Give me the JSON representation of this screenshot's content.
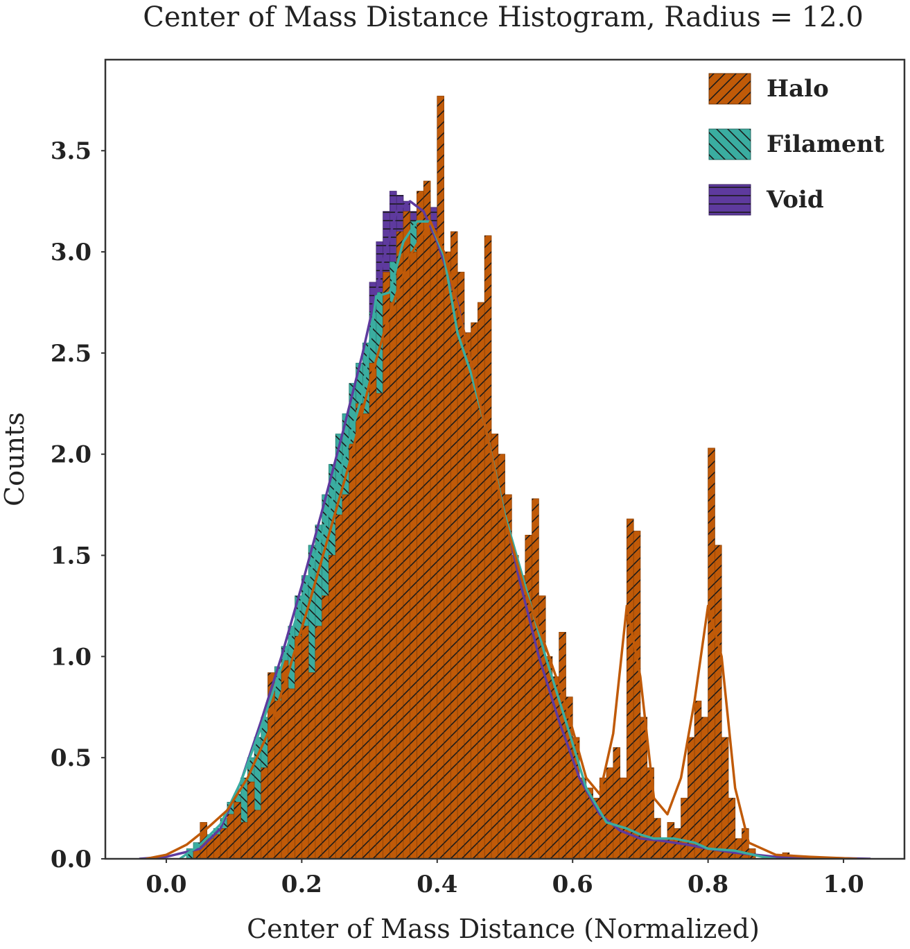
{
  "chart_data": {
    "type": "bar",
    "subtype": "histogram-with-kde",
    "title": "Center of Mass Distance Histogram, Radius = 12.0",
    "xlabel": "Center of Mass Distance (Normalized)",
    "ylabel": "Counts",
    "xlim": [
      -0.09,
      1.09
    ],
    "ylim": [
      0,
      3.95
    ],
    "xticks": [
      "0.0",
      "0.2",
      "0.4",
      "0.6",
      "0.8",
      "1.0"
    ],
    "yticks": [
      "0.0",
      "0.5",
      "1.0",
      "1.5",
      "2.0",
      "2.5",
      "3.0",
      "3.5"
    ],
    "bin_width": 0.01,
    "grid": false,
    "legend_position": "top-right",
    "series": [
      {
        "name": "Halo",
        "color": "#c05a08",
        "hatch": "diagonal-forward",
        "bins": [
          [
            0.04,
            0.05
          ],
          [
            0.05,
            0.18
          ],
          [
            0.06,
            0.1
          ],
          [
            0.07,
            0.12
          ],
          [
            0.08,
            0.15
          ],
          [
            0.09,
            0.22
          ],
          [
            0.1,
            0.28
          ],
          [
            0.11,
            0.18
          ],
          [
            0.12,
            0.38
          ],
          [
            0.13,
            0.24
          ],
          [
            0.14,
            0.45
          ],
          [
            0.15,
            0.92
          ],
          [
            0.16,
            0.78
          ],
          [
            0.17,
            0.98
          ],
          [
            0.18,
            0.84
          ],
          [
            0.19,
            1.1
          ],
          [
            0.2,
            1.15
          ],
          [
            0.21,
            0.92
          ],
          [
            0.22,
            1.15
          ],
          [
            0.23,
            1.3
          ],
          [
            0.24,
            1.5
          ],
          [
            0.25,
            1.7
          ],
          [
            0.26,
            1.8
          ],
          [
            0.27,
            2.05
          ],
          [
            0.28,
            2.25
          ],
          [
            0.29,
            2.2
          ],
          [
            0.3,
            2.45
          ],
          [
            0.31,
            2.3
          ],
          [
            0.32,
            2.9
          ],
          [
            0.33,
            2.75
          ],
          [
            0.34,
            3.1
          ],
          [
            0.35,
            3.2
          ],
          [
            0.36,
            3.0
          ],
          [
            0.37,
            3.3
          ],
          [
            0.38,
            3.35
          ],
          [
            0.39,
            3.1
          ],
          [
            0.4,
            3.77
          ],
          [
            0.41,
            3.0
          ],
          [
            0.42,
            3.1
          ],
          [
            0.43,
            2.9
          ],
          [
            0.44,
            2.6
          ],
          [
            0.45,
            2.65
          ],
          [
            0.46,
            2.75
          ],
          [
            0.47,
            3.08
          ],
          [
            0.48,
            2.1
          ],
          [
            0.49,
            2.0
          ],
          [
            0.5,
            1.8
          ],
          [
            0.51,
            1.5
          ],
          [
            0.52,
            1.4
          ],
          [
            0.53,
            1.6
          ],
          [
            0.54,
            1.78
          ],
          [
            0.55,
            1.3
          ],
          [
            0.56,
            1.0
          ],
          [
            0.57,
            0.9
          ],
          [
            0.58,
            1.12
          ],
          [
            0.59,
            0.8
          ],
          [
            0.6,
            0.6
          ],
          [
            0.61,
            0.4
          ],
          [
            0.62,
            0.35
          ],
          [
            0.63,
            0.3
          ],
          [
            0.64,
            0.4
          ],
          [
            0.65,
            0.45
          ],
          [
            0.66,
            0.55
          ],
          [
            0.67,
            0.4
          ],
          [
            0.68,
            1.68
          ],
          [
            0.69,
            1.62
          ],
          [
            0.7,
            0.7
          ],
          [
            0.71,
            0.45
          ],
          [
            0.72,
            0.2
          ],
          [
            0.73,
            0.1
          ],
          [
            0.74,
            0.18
          ],
          [
            0.75,
            0.15
          ],
          [
            0.76,
            0.3
          ],
          [
            0.77,
            0.6
          ],
          [
            0.78,
            0.78
          ],
          [
            0.79,
            0.7
          ],
          [
            0.8,
            2.03
          ],
          [
            0.81,
            1.55
          ],
          [
            0.82,
            0.6
          ],
          [
            0.83,
            0.3
          ],
          [
            0.84,
            0.1
          ],
          [
            0.85,
            0.15
          ],
          [
            0.86,
            0.05
          ],
          [
            0.91,
            0.03
          ]
        ],
        "kde": [
          [
            -0.03,
            0.0
          ],
          [
            0.0,
            0.02
          ],
          [
            0.03,
            0.07
          ],
          [
            0.06,
            0.15
          ],
          [
            0.09,
            0.24
          ],
          [
            0.12,
            0.4
          ],
          [
            0.15,
            0.62
          ],
          [
            0.18,
            0.92
          ],
          [
            0.21,
            1.25
          ],
          [
            0.24,
            1.6
          ],
          [
            0.27,
            1.95
          ],
          [
            0.3,
            2.35
          ],
          [
            0.33,
            2.7
          ],
          [
            0.36,
            2.98
          ],
          [
            0.39,
            3.15
          ],
          [
            0.41,
            3.0
          ],
          [
            0.44,
            2.6
          ],
          [
            0.47,
            2.15
          ],
          [
            0.5,
            1.68
          ],
          [
            0.53,
            1.32
          ],
          [
            0.56,
            1.05
          ],
          [
            0.59,
            0.76
          ],
          [
            0.62,
            0.4
          ],
          [
            0.64,
            0.32
          ],
          [
            0.66,
            0.62
          ],
          [
            0.68,
            1.25
          ],
          [
            0.7,
            0.9
          ],
          [
            0.72,
            0.3
          ],
          [
            0.74,
            0.22
          ],
          [
            0.76,
            0.4
          ],
          [
            0.78,
            0.78
          ],
          [
            0.8,
            1.25
          ],
          [
            0.82,
            1.0
          ],
          [
            0.84,
            0.35
          ],
          [
            0.86,
            0.08
          ],
          [
            0.9,
            0.02
          ],
          [
            0.95,
            0.01
          ],
          [
            1.02,
            0.0
          ]
        ]
      },
      {
        "name": "Filament",
        "color": "#3aada0",
        "hatch": "diagonal-back",
        "bins": [
          [
            0.03,
            0.05
          ],
          [
            0.04,
            0.08
          ],
          [
            0.05,
            0.1
          ],
          [
            0.06,
            0.12
          ],
          [
            0.07,
            0.15
          ],
          [
            0.08,
            0.2
          ],
          [
            0.09,
            0.28
          ],
          [
            0.1,
            0.32
          ],
          [
            0.11,
            0.4
          ],
          [
            0.12,
            0.5
          ],
          [
            0.13,
            0.6
          ],
          [
            0.14,
            0.7
          ],
          [
            0.15,
            0.85
          ],
          [
            0.16,
            0.95
          ],
          [
            0.17,
            1.05
          ],
          [
            0.18,
            1.15
          ],
          [
            0.19,
            1.3
          ],
          [
            0.2,
            1.4
          ],
          [
            0.21,
            1.55
          ],
          [
            0.22,
            1.65
          ],
          [
            0.23,
            1.8
          ],
          [
            0.24,
            1.95
          ],
          [
            0.25,
            2.1
          ],
          [
            0.26,
            2.2
          ],
          [
            0.27,
            2.35
          ],
          [
            0.28,
            2.45
          ],
          [
            0.29,
            2.55
          ],
          [
            0.3,
            2.7
          ],
          [
            0.31,
            2.8
          ],
          [
            0.32,
            2.85
          ],
          [
            0.33,
            2.95
          ],
          [
            0.34,
            3.05
          ],
          [
            0.35,
            3.1
          ],
          [
            0.36,
            3.15
          ],
          [
            0.37,
            3.1
          ],
          [
            0.38,
            3.15
          ],
          [
            0.39,
            3.1
          ],
          [
            0.4,
            3.0
          ],
          [
            0.41,
            2.9
          ],
          [
            0.42,
            2.85
          ],
          [
            0.43,
            2.75
          ],
          [
            0.44,
            2.55
          ],
          [
            0.45,
            2.35
          ],
          [
            0.46,
            2.2
          ],
          [
            0.47,
            2.0
          ],
          [
            0.48,
            1.85
          ],
          [
            0.49,
            1.7
          ],
          [
            0.5,
            1.55
          ],
          [
            0.51,
            1.4
          ],
          [
            0.52,
            1.3
          ],
          [
            0.53,
            1.2
          ],
          [
            0.54,
            1.05
          ],
          [
            0.55,
            0.95
          ],
          [
            0.56,
            0.85
          ],
          [
            0.57,
            0.72
          ],
          [
            0.58,
            0.6
          ],
          [
            0.59,
            0.48
          ],
          [
            0.6,
            0.38
          ],
          [
            0.61,
            0.3
          ],
          [
            0.62,
            0.22
          ],
          [
            0.63,
            0.16
          ],
          [
            0.64,
            0.15
          ],
          [
            0.65,
            0.14
          ],
          [
            0.66,
            0.12
          ],
          [
            0.67,
            0.1
          ],
          [
            0.68,
            0.1
          ],
          [
            0.69,
            0.1
          ],
          [
            0.7,
            0.08
          ],
          [
            0.71,
            0.07
          ],
          [
            0.72,
            0.08
          ],
          [
            0.73,
            0.09
          ],
          [
            0.74,
            0.1
          ],
          [
            0.75,
            0.09
          ],
          [
            0.76,
            0.08
          ],
          [
            0.77,
            0.07
          ],
          [
            0.78,
            0.06
          ],
          [
            0.79,
            0.05
          ],
          [
            0.8,
            0.05
          ],
          [
            0.81,
            0.05
          ],
          [
            0.82,
            0.04
          ],
          [
            0.83,
            0.04
          ],
          [
            0.84,
            0.03
          ],
          [
            0.85,
            0.02
          ],
          [
            0.86,
            0.02
          ]
        ],
        "kde": [
          [
            0.02,
            0.0
          ],
          [
            0.05,
            0.07
          ],
          [
            0.08,
            0.17
          ],
          [
            0.11,
            0.38
          ],
          [
            0.14,
            0.65
          ],
          [
            0.17,
            0.95
          ],
          [
            0.2,
            1.28
          ],
          [
            0.23,
            1.6
          ],
          [
            0.26,
            1.95
          ],
          [
            0.29,
            2.3
          ],
          [
            0.31,
            2.78
          ],
          [
            0.33,
            2.8
          ],
          [
            0.35,
            3.05
          ],
          [
            0.37,
            3.15
          ],
          [
            0.39,
            3.15
          ],
          [
            0.41,
            2.98
          ],
          [
            0.43,
            2.6
          ],
          [
            0.45,
            2.4
          ],
          [
            0.47,
            2.15
          ],
          [
            0.5,
            1.7
          ],
          [
            0.53,
            1.35
          ],
          [
            0.56,
            1.0
          ],
          [
            0.59,
            0.68
          ],
          [
            0.62,
            0.35
          ],
          [
            0.65,
            0.18
          ],
          [
            0.68,
            0.15
          ],
          [
            0.7,
            0.12
          ],
          [
            0.72,
            0.1
          ],
          [
            0.75,
            0.1
          ],
          [
            0.78,
            0.08
          ],
          [
            0.8,
            0.05
          ],
          [
            0.84,
            0.04
          ],
          [
            0.88,
            0.01
          ],
          [
            0.9,
            0.0
          ]
        ]
      },
      {
        "name": "Void",
        "color": "#5e3a9e",
        "hatch": "horizontal",
        "bins": [
          [
            0.3,
            2.85
          ],
          [
            0.31,
            3.05
          ],
          [
            0.32,
            3.2
          ],
          [
            0.33,
            3.3
          ],
          [
            0.34,
            3.28
          ],
          [
            0.35,
            3.25
          ],
          [
            0.36,
            3.2
          ],
          [
            0.37,
            3.25
          ],
          [
            0.38,
            3.28
          ],
          [
            0.39,
            3.22
          ],
          [
            0.4,
            3.0
          ],
          [
            0.41,
            2.95
          ],
          [
            0.42,
            2.85
          ],
          [
            0.43,
            2.7
          ],
          [
            0.44,
            2.6
          ],
          [
            0.45,
            2.5
          ],
          [
            0.46,
            2.45
          ]
        ],
        "kde": [
          [
            -0.04,
            0.0
          ],
          [
            0.0,
            0.01
          ],
          [
            0.05,
            0.05
          ],
          [
            0.08,
            0.15
          ],
          [
            0.11,
            0.38
          ],
          [
            0.14,
            0.68
          ],
          [
            0.17,
            1.0
          ],
          [
            0.2,
            1.35
          ],
          [
            0.23,
            1.72
          ],
          [
            0.26,
            2.1
          ],
          [
            0.29,
            2.5
          ],
          [
            0.32,
            2.95
          ],
          [
            0.34,
            3.2
          ],
          [
            0.36,
            3.25
          ],
          [
            0.38,
            3.2
          ],
          [
            0.4,
            3.05
          ],
          [
            0.43,
            2.75
          ],
          [
            0.46,
            2.3
          ],
          [
            0.49,
            1.85
          ],
          [
            0.52,
            1.4
          ],
          [
            0.55,
            1.0
          ],
          [
            0.58,
            0.68
          ],
          [
            0.61,
            0.4
          ],
          [
            0.64,
            0.22
          ],
          [
            0.67,
            0.14
          ],
          [
            0.7,
            0.1
          ],
          [
            0.73,
            0.09
          ],
          [
            0.77,
            0.07
          ],
          [
            0.8,
            0.05
          ],
          [
            0.84,
            0.03
          ],
          [
            0.9,
            0.01
          ],
          [
            1.04,
            0.0
          ]
        ]
      }
    ]
  }
}
